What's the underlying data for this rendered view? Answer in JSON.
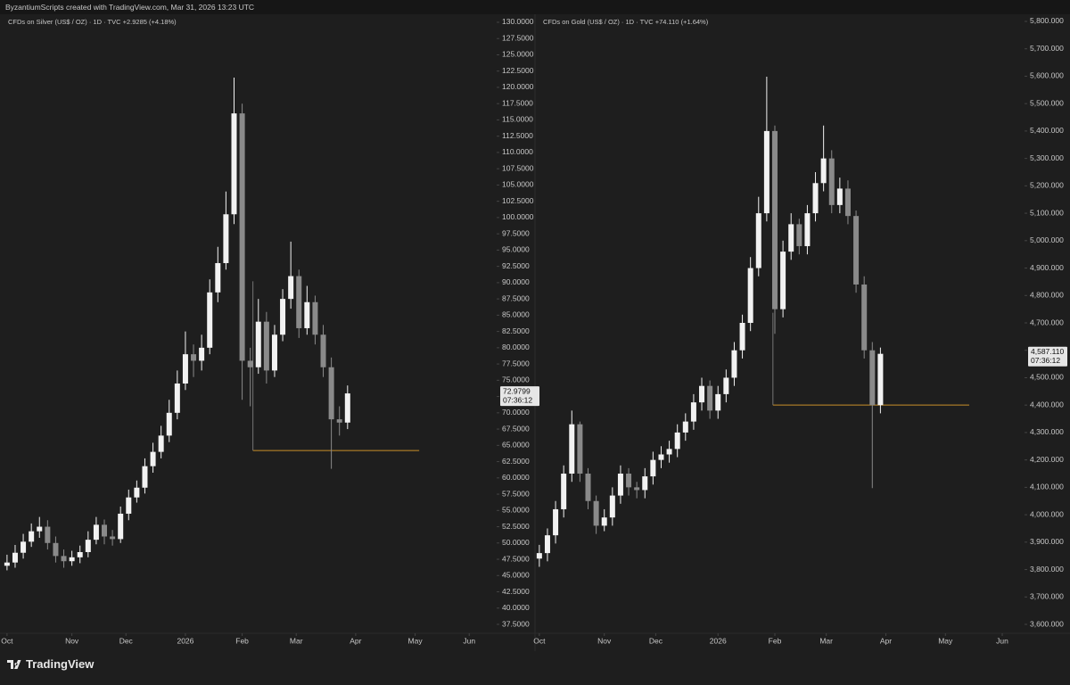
{
  "header": "ByzantiumScripts created with TradingView.com, Mar 31, 2026 13:23 UTC",
  "brand": "TradingView",
  "chart_data": [
    {
      "type": "candlestick",
      "title": "CFDs on Silver (US$ / OZ) · 1D · TVC  +2.9285 (+4.18%)",
      "x": [
        0,
        3,
        6,
        9,
        12,
        15,
        18,
        21,
        24,
        27,
        30,
        33,
        36,
        39,
        42,
        45,
        48,
        51,
        54,
        57,
        60,
        63,
        66,
        69,
        72,
        75,
        78,
        81,
        84,
        87,
        90,
        93,
        96,
        99,
        102,
        105,
        108,
        111,
        114,
        117,
        120,
        123,
        126
      ],
      "open": [
        46.5,
        47.0,
        48.5,
        50.2,
        51.8,
        52.5,
        50.0,
        48.0,
        47.2,
        47.8,
        48.6,
        50.5,
        52.8,
        51.0,
        50.6,
        54.5,
        57.0,
        58.5,
        61.8,
        64.0,
        66.5,
        70.0,
        74.5,
        79.0,
        78.0,
        80.0,
        88.5,
        93.0,
        100.5,
        116.0,
        78.0,
        77.0,
        84.0,
        76.5,
        82.0,
        87.5,
        91.0,
        83.0,
        87.0,
        82.0,
        77.0,
        69.0,
        68.5
      ],
      "high": [
        48.2,
        49.7,
        51.4,
        53.0,
        54.0,
        53.5,
        51.0,
        49.0,
        48.8,
        49.6,
        51.8,
        54.0,
        53.6,
        52.0,
        55.6,
        58.2,
        59.6,
        63.0,
        65.4,
        68.0,
        72.0,
        76.5,
        82.5,
        80.5,
        82.0,
        90.5,
        95.5,
        104,
        121.5,
        117.5,
        80,
        87.5,
        85.5,
        83.5,
        89,
        96.3,
        92,
        89.5,
        88,
        83.5,
        78.5,
        71,
        74.2
      ],
      "low": [
        45.8,
        46.2,
        47.6,
        49.4,
        50.8,
        49.0,
        47.0,
        46.2,
        46.5,
        46.9,
        47.8,
        49.8,
        49.8,
        49.6,
        50.0,
        53.5,
        56.2,
        57.6,
        60.8,
        63.0,
        65.5,
        69.0,
        73.5,
        75.5,
        76.5,
        79.0,
        87.0,
        92.0,
        99.0,
        72.0,
        71.0,
        76.0,
        74.5,
        75.5,
        81.0,
        86.0,
        81.5,
        82.0,
        80.5,
        75.5,
        61.4,
        66.5,
        67.5
      ],
      "close": [
        47.0,
        48.5,
        50.2,
        51.8,
        52.5,
        50.0,
        48.0,
        47.2,
        47.8,
        48.6,
        50.5,
        52.8,
        51.0,
        50.6,
        54.5,
        57.0,
        58.5,
        61.8,
        64.0,
        66.5,
        70.0,
        74.5,
        79.0,
        78.0,
        80.0,
        88.5,
        93.0,
        100.5,
        116.0,
        78.0,
        77.0,
        84.0,
        76.5,
        82.0,
        87.5,
        91.0,
        83.0,
        87.0,
        82.0,
        77.0,
        69.0,
        68.5,
        72.98
      ],
      "up_color": "#f2f2f2",
      "down_color": "#8a8a8a",
      "xlim": [
        -2.6,
        180.5
      ],
      "xticks": [
        {
          "value": 0,
          "label": "Oct"
        },
        {
          "value": 24,
          "label": "Nov"
        },
        {
          "value": 44,
          "label": "Dec"
        },
        {
          "value": 66,
          "label": "2026"
        },
        {
          "value": 87,
          "label": "Feb"
        },
        {
          "value": 107,
          "label": "Mar"
        },
        {
          "value": 129,
          "label": "Apr"
        },
        {
          "value": 151,
          "label": "May"
        },
        {
          "value": 171,
          "label": "Jun"
        }
      ],
      "ylim": [
        36.13,
        131.23
      ],
      "yticks": [
        {
          "value": 37.5,
          "label": "37.5000"
        },
        {
          "value": 40,
          "label": "40.0000"
        },
        {
          "value": 42.5,
          "label": "42.5000"
        },
        {
          "value": 45,
          "label": "45.0000"
        },
        {
          "value": 47.5,
          "label": "47.5000"
        },
        {
          "value": 50,
          "label": "50.0000"
        },
        {
          "value": 52.5,
          "label": "52.5000"
        },
        {
          "value": 55,
          "label": "55.0000"
        },
        {
          "value": 57.5,
          "label": "57.5000"
        },
        {
          "value": 60,
          "label": "60.0000"
        },
        {
          "value": 62.5,
          "label": "62.5000"
        },
        {
          "value": 65,
          "label": "65.0000"
        },
        {
          "value": 67.5,
          "label": "67.5000"
        },
        {
          "value": 70,
          "label": "70.0000"
        },
        {
          "value": 72.5,
          "label": "72.5000"
        },
        {
          "value": 75,
          "label": "75.0000"
        },
        {
          "value": 77.5,
          "label": "77.5000"
        },
        {
          "value": 80,
          "label": "80.0000"
        },
        {
          "value": 82.5,
          "label": "82.5000"
        },
        {
          "value": 85,
          "label": "85.0000"
        },
        {
          "value": 87.5,
          "label": "87.5000"
        },
        {
          "value": 90,
          "label": "90.0000"
        },
        {
          "value": 92.5,
          "label": "92.5000"
        },
        {
          "value": 95,
          "label": "95.0000"
        },
        {
          "value": 97.5,
          "label": "97.5000"
        },
        {
          "value": 100,
          "label": "100.0000"
        },
        {
          "value": 102.5,
          "label": "102.5000"
        },
        {
          "value": 105,
          "label": "105.0000"
        },
        {
          "value": 107.5,
          "label": "107.5000"
        },
        {
          "value": 110,
          "label": "110.0000"
        },
        {
          "value": 112.5,
          "label": "112.5000"
        },
        {
          "value": 115,
          "label": "115.0000"
        },
        {
          "value": 117.5,
          "label": "117.5000"
        },
        {
          "value": 120,
          "label": "120.0000"
        },
        {
          "value": 122.5,
          "label": "122.5000"
        },
        {
          "value": 125,
          "label": "125.0000"
        },
        {
          "value": 127.5,
          "label": "127.5000"
        },
        {
          "value": 130,
          "label": "130.0000"
        }
      ],
      "last_price": {
        "value": 72.9799,
        "label": "72.9799"
      },
      "countdown": "07:36:12",
      "hline": {
        "value": 64.2,
        "x": [
          91,
          152.5
        ],
        "top": 90.2,
        "color": "#c8902a"
      }
    },
    {
      "type": "candlestick",
      "title": "CFDs on Gold (US$ / OZ) · 1D · TVC  +74.110 (+1.64%)",
      "x": [
        0,
        3,
        6,
        9,
        12,
        15,
        18,
        21,
        24,
        27,
        30,
        33,
        36,
        39,
        42,
        45,
        48,
        51,
        54,
        57,
        60,
        63,
        66,
        69,
        72,
        75,
        78,
        81,
        84,
        87,
        90,
        93,
        96,
        99,
        102,
        105,
        108,
        111,
        114,
        117,
        120,
        123,
        126
      ],
      "open": [
        3840,
        3860,
        3925,
        4020,
        4150,
        4330,
        4150,
        4050,
        3960,
        3990,
        4070,
        4150,
        4100,
        4090,
        4140,
        4200,
        4220,
        4240,
        4300,
        4340,
        4410,
        4470,
        4380,
        4440,
        4500,
        4600,
        4700,
        4900,
        5100,
        5400,
        4750,
        4960,
        5060,
        4980,
        5100,
        5210,
        5300,
        5130,
        5190,
        5090,
        4840,
        4600,
        4400
      ],
      "high": [
        3890,
        3950,
        4050,
        4180,
        4380,
        4340,
        4170,
        4070,
        4020,
        4100,
        4180,
        4170,
        4120,
        4170,
        4230,
        4250,
        4270,
        4330,
        4370,
        4440,
        4500,
        4490,
        4470,
        4530,
        4630,
        4730,
        4940,
        5160,
        5598,
        5420,
        5000,
        5100,
        5080,
        5130,
        5250,
        5420,
        5330,
        5230,
        5220,
        5110,
        4870,
        4630,
        4610
      ],
      "low": [
        3810,
        3830,
        3895,
        3990,
        4120,
        4120,
        4020,
        3930,
        3940,
        3960,
        4040,
        4070,
        4060,
        4060,
        4110,
        4170,
        4190,
        4210,
        4270,
        4310,
        4380,
        4350,
        4350,
        4410,
        4470,
        4570,
        4670,
        4870,
        5070,
        4660,
        4720,
        4930,
        4950,
        4950,
        5070,
        5180,
        5100,
        5100,
        5060,
        4810,
        4570,
        4097,
        4370
      ],
      "close": [
        3860,
        3925,
        4020,
        4150,
        4330,
        4150,
        4050,
        3960,
        3990,
        4070,
        4150,
        4100,
        4090,
        4140,
        4200,
        4220,
        4240,
        4300,
        4340,
        4410,
        4470,
        4380,
        4440,
        4500,
        4600,
        4700,
        4900,
        5100,
        5400,
        4750,
        4960,
        5060,
        4980,
        5100,
        5210,
        5300,
        5130,
        5190,
        5090,
        4840,
        4600,
        4400,
        4587.11
      ],
      "up_color": "#f2f2f2",
      "down_color": "#8a8a8a",
      "xlim": [
        -1.6,
        178.9
      ],
      "xticks": [
        {
          "value": 0,
          "label": "Oct"
        },
        {
          "value": 24,
          "label": "Nov"
        },
        {
          "value": 43,
          "label": "Dec"
        },
        {
          "value": 66,
          "label": "2026"
        },
        {
          "value": 87,
          "label": "Feb"
        },
        {
          "value": 106,
          "label": "Mar"
        },
        {
          "value": 128,
          "label": "Apr"
        },
        {
          "value": 150,
          "label": "May"
        },
        {
          "value": 171,
          "label": "Jun"
        }
      ],
      "ylim": [
        3567.5,
        5826
      ],
      "yticks": [
        {
          "value": 3600,
          "label": "3,600.000"
        },
        {
          "value": 3700,
          "label": "3,700.000"
        },
        {
          "value": 3800,
          "label": "3,800.000"
        },
        {
          "value": 3900,
          "label": "3,900.000"
        },
        {
          "value": 4000,
          "label": "4,000.000"
        },
        {
          "value": 4100,
          "label": "4,100.000"
        },
        {
          "value": 4200,
          "label": "4,200.000"
        },
        {
          "value": 4300,
          "label": "4,300.000"
        },
        {
          "value": 4400,
          "label": "4,400.000"
        },
        {
          "value": 4500,
          "label": "4,500.000"
        },
        {
          "value": 4600,
          "label": "4,600.000"
        },
        {
          "value": 4700,
          "label": "4,700.000"
        },
        {
          "value": 4800,
          "label": "4,800.000"
        },
        {
          "value": 4900,
          "label": "4,900.000"
        },
        {
          "value": 5000,
          "label": "5,000.000"
        },
        {
          "value": 5100,
          "label": "5,100.000"
        },
        {
          "value": 5200,
          "label": "5,200.000"
        },
        {
          "value": 5300,
          "label": "5,300.000"
        },
        {
          "value": 5400,
          "label": "5,400.000"
        },
        {
          "value": 5500,
          "label": "5,500.000"
        },
        {
          "value": 5600,
          "label": "5,600.000"
        },
        {
          "value": 5700,
          "label": "5,700.000"
        },
        {
          "value": 5800,
          "label": "5,800.000"
        }
      ],
      "last_price": {
        "value": 4587.11,
        "label": "4,587.110"
      },
      "countdown": "07:36:12",
      "hline": {
        "value": 4400,
        "x": [
          86.3,
          158.8
        ],
        "top": 4737,
        "color": "#c8902a"
      }
    }
  ]
}
